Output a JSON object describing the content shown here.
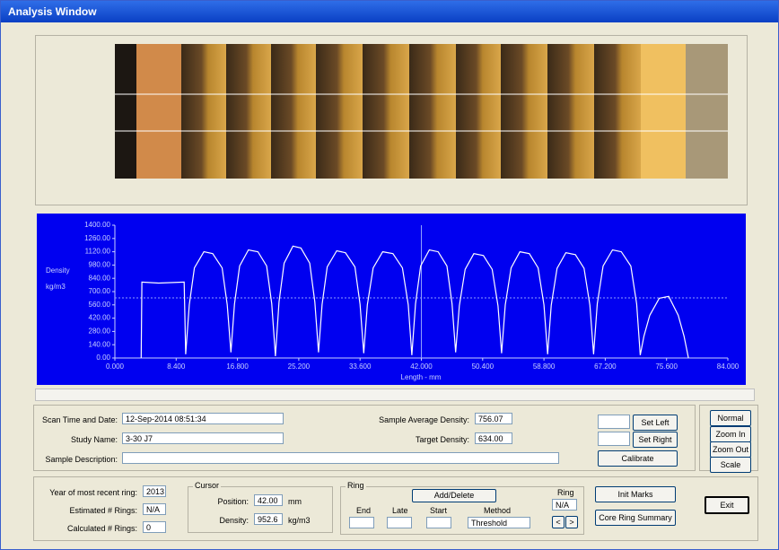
{
  "window": {
    "title": "Analysis Window"
  },
  "chart_data": {
    "type": "line",
    "xlabel": "Length - mm",
    "ylabel": [
      "Density",
      "kg/m3"
    ],
    "color": "#ffffff",
    "xlim": [
      0,
      84
    ],
    "ylim": [
      0,
      1400
    ],
    "xticks": [
      {
        "value": 0,
        "label": "0.000"
      },
      {
        "value": 8.4,
        "label": "8.400"
      },
      {
        "value": 16.8,
        "label": "16.800"
      },
      {
        "value": 25.2,
        "label": "25.200"
      },
      {
        "value": 33.6,
        "label": "33.600"
      },
      {
        "value": 42,
        "label": "42.000"
      },
      {
        "value": 50.4,
        "label": "50.400"
      },
      {
        "value": 58.8,
        "label": "58.800"
      },
      {
        "value": 67.2,
        "label": "67.200"
      },
      {
        "value": 75.6,
        "label": "75.600"
      },
      {
        "value": 84,
        "label": "84.000"
      }
    ],
    "yticks": [
      {
        "value": 0,
        "label": "0.00"
      },
      {
        "value": 140,
        "label": "140.00"
      },
      {
        "value": 280,
        "label": "280.00"
      },
      {
        "value": 420,
        "label": "420.00"
      },
      {
        "value": 560,
        "label": "560.00"
      },
      {
        "value": 700,
        "label": "700.00"
      },
      {
        "value": 840,
        "label": "840.00"
      },
      {
        "value": 980,
        "label": "980.00"
      },
      {
        "value": 1120,
        "label": "1120.00"
      },
      {
        "value": 1260,
        "label": "1260.00"
      },
      {
        "value": 1400,
        "label": "1400.00"
      }
    ],
    "cursor": 42,
    "target": 634,
    "x": [
      3.6,
      3.7,
      6,
      9.5,
      9.7,
      10.2,
      10.9,
      12.2,
      13.4,
      14.7,
      15.4,
      15.9,
      16.4,
      17.1,
      18.3,
      19.6,
      20.8,
      21.5,
      22.0,
      22.5,
      23.2,
      24.4,
      25.5,
      26.7,
      27.4,
      27.9,
      28.4,
      29.1,
      30.4,
      31.6,
      32.9,
      33.6,
      34.1,
      34.6,
      35.4,
      36.7,
      38.1,
      39.4,
      40.2,
      40.7,
      41.2,
      41.9,
      43.1,
      44.3,
      45.5,
      46.2,
      46.7,
      47.2,
      48.0,
      49.2,
      50.5,
      51.7,
      52.5,
      53.0,
      53.5,
      54.3,
      55.5,
      56.8,
      58.0,
      58.8,
      59.3,
      59.8,
      60.6,
      61.8,
      63.1,
      64.3,
      65.1,
      65.6,
      66.1,
      66.9,
      68.2,
      69.4,
      70.7,
      71.5,
      72.0,
      72.5,
      73.3,
      74.6,
      75.9,
      77.2,
      78.0,
      78.6
    ],
    "values": [
      0,
      800,
      790,
      800,
      40,
      560,
      950,
      1120,
      1100,
      950,
      560,
      60,
      570,
      970,
      1140,
      1120,
      970,
      570,
      20,
      590,
      1000,
      1180,
      1160,
      1000,
      590,
      60,
      565,
      960,
      1130,
      1110,
      960,
      565,
      50,
      560,
      950,
      1120,
      1100,
      950,
      560,
      30,
      570,
      970,
      1140,
      1120,
      970,
      570,
      60,
      550,
      935,
      1100,
      1080,
      935,
      550,
      50,
      560,
      950,
      1120,
      1100,
      950,
      560,
      40,
      555,
      945,
      1110,
      1090,
      945,
      555,
      40,
      570,
      970,
      1140,
      1120,
      970,
      570,
      30,
      230,
      450,
      630,
      650,
      450,
      230,
      0
    ]
  },
  "form": {
    "scan_time_label": "Scan Time and Date:",
    "scan_time": "12-Sep-2014   08:51:34",
    "study_name_label": "Study Name:",
    "study_name": "3-30 J7",
    "sample_description_label": "Sample Description:",
    "avg_density_label": "Sample Average Density:",
    "avg_density": "756.07",
    "target_density_label": "Target Density:",
    "target_density": "634.00",
    "set_left": "Set Left",
    "set_right": "Set Right",
    "calibrate": "Calibrate",
    "normal": "Normal",
    "zoom_in": "Zoom In",
    "zoom_out": "Zoom Out",
    "scale": "Scale",
    "year_label": "Year of most recent ring:",
    "year": "2013",
    "estimated_label": "Estimated # Rings:",
    "estimated": "N/A",
    "calculated_label": "Calculated # Rings:",
    "calculated": "0",
    "cursor_group": "Cursor",
    "position_label": "Position:",
    "position": "42.00",
    "position_unit": "mm",
    "density_label": "Density:",
    "density": "952.6",
    "density_unit": "kg/m3",
    "ring_group": "Ring",
    "add_delete": "Add/Delete",
    "end": "End",
    "late": "Late",
    "start": "Start",
    "method": "Method",
    "method_value": "Threshold",
    "ring_label": "Ring",
    "ring_value": "N/A",
    "prev": "<",
    "next": ">",
    "init_marks": "Init Marks",
    "core_summary": "Core Ring Summary",
    "exit": "Exit"
  }
}
